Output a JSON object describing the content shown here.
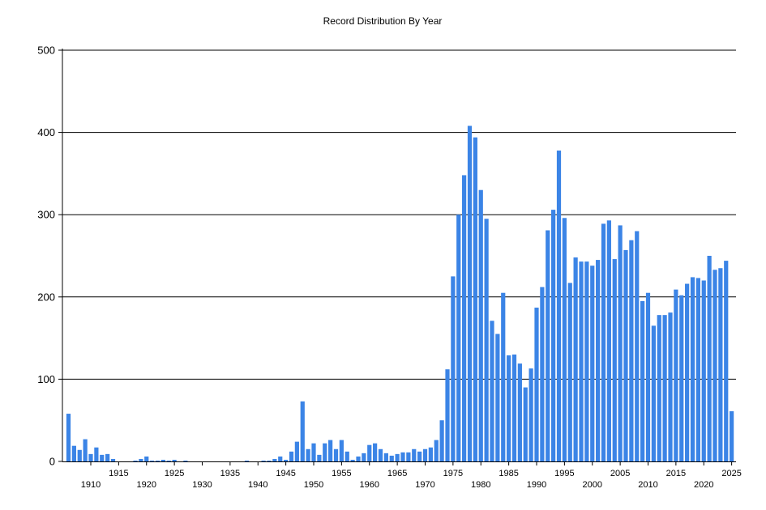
{
  "chart_data": {
    "type": "bar",
    "title": "Record Distribution By Year",
    "xlabel": "",
    "ylabel": "",
    "ylim": [
      0,
      500
    ],
    "y_ticks": [
      0,
      100,
      200,
      300,
      400,
      500
    ],
    "grid": true,
    "legend": "none",
    "colors": {
      "bar": "#3b84e6",
      "grid": "#000000",
      "axis": "#000000"
    },
    "x": [
      1906,
      1907,
      1908,
      1909,
      1910,
      1911,
      1912,
      1913,
      1914,
      1915,
      1916,
      1917,
      1918,
      1919,
      1920,
      1921,
      1922,
      1923,
      1924,
      1925,
      1926,
      1927,
      1928,
      1929,
      1930,
      1931,
      1932,
      1933,
      1934,
      1935,
      1936,
      1937,
      1938,
      1939,
      1940,
      1941,
      1942,
      1943,
      1944,
      1945,
      1946,
      1947,
      1948,
      1949,
      1950,
      1951,
      1952,
      1953,
      1954,
      1955,
      1956,
      1957,
      1958,
      1959,
      1960,
      1961,
      1962,
      1963,
      1964,
      1965,
      1966,
      1967,
      1968,
      1969,
      1970,
      1971,
      1972,
      1973,
      1974,
      1975,
      1976,
      1977,
      1978,
      1979,
      1980,
      1981,
      1982,
      1983,
      1984,
      1985,
      1986,
      1987,
      1988,
      1989,
      1990,
      1991,
      1992,
      1993,
      1994,
      1995,
      1996,
      1997,
      1998,
      1999,
      2000,
      2001,
      2002,
      2003,
      2004,
      2005,
      2006,
      2007,
      2008,
      2009,
      2010,
      2011,
      2012,
      2013,
      2014,
      2015,
      2016,
      2017,
      2018,
      2019,
      2020,
      2021,
      2022,
      2023,
      2024,
      2025
    ],
    "values": [
      58,
      19,
      14,
      27,
      9,
      17,
      8,
      9,
      3,
      0,
      0,
      0,
      1,
      3,
      6,
      1,
      1,
      2,
      1,
      2,
      0,
      1,
      0,
      0,
      0,
      0,
      0,
      0,
      0,
      0,
      0,
      0,
      1,
      0,
      0,
      1,
      1,
      3,
      6,
      2,
      12,
      24,
      73,
      15,
      22,
      8,
      22,
      26,
      15,
      26,
      12,
      2,
      6,
      10,
      20,
      22,
      15,
      10,
      7,
      9,
      11,
      11,
      15,
      12,
      15,
      17,
      26,
      50,
      112,
      225,
      300,
      348,
      408,
      394,
      330,
      295,
      171,
      155,
      205,
      129,
      130,
      119,
      90,
      113,
      187,
      212,
      281,
      306,
      378,
      296,
      217,
      248,
      243,
      243,
      238,
      245,
      289,
      293,
      246,
      287,
      257,
      269,
      280,
      195,
      205,
      165,
      178,
      178,
      181,
      209,
      202,
      216,
      224,
      223,
      220,
      250,
      233,
      235,
      244,
      61
    ],
    "x_tick_labels_row1": [
      "1915",
      "1925",
      "1935",
      "1945",
      "1955",
      "1965",
      "1975",
      "1985",
      "1995",
      "2005",
      "2015",
      "2025"
    ],
    "x_tick_labels_row2": [
      "1910",
      "1920",
      "1930",
      "1940",
      "1950",
      "1960",
      "1970",
      "1980",
      "1990",
      "2000",
      "2010",
      "2020"
    ]
  }
}
